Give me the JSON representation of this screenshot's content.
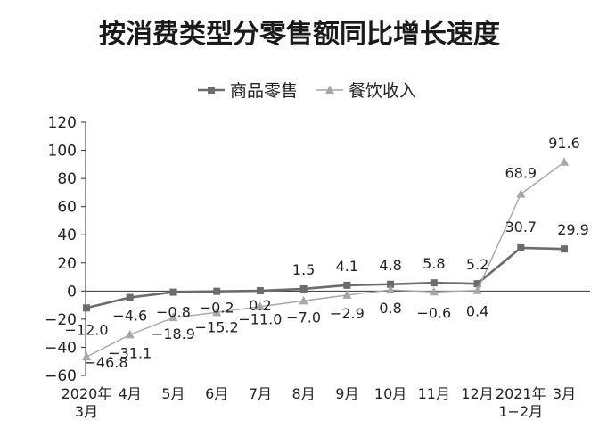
{
  "chart_data": {
    "type": "line",
    "title": "按消费类型分零售额同比增长速度",
    "legend_position": "top-center",
    "grid": false,
    "categories": [
      [
        "2020年",
        "3月"
      ],
      [
        "4月"
      ],
      [
        "5月"
      ],
      [
        "6月"
      ],
      [
        "7月"
      ],
      [
        "8月"
      ],
      [
        "9月"
      ],
      [
        "10月"
      ],
      [
        "11月"
      ],
      [
        "12月"
      ],
      [
        "2021年",
        "1−2月"
      ],
      [
        "3月"
      ]
    ],
    "series": [
      {
        "name": "商品零售",
        "color": "#6b6b6b",
        "marker": "square",
        "values": [
          -12.0,
          -4.6,
          -0.8,
          -0.2,
          0.2,
          1.5,
          4.1,
          4.8,
          5.8,
          5.2,
          30.7,
          29.9
        ],
        "labels": [
          "−12.0",
          "−4.6",
          "−0.8",
          "−0.2",
          "0.2",
          "1.5",
          "4.1",
          "4.8",
          "5.8",
          "5.2",
          "30.7",
          "29.9"
        ]
      },
      {
        "name": "餐饮收入",
        "color": "#a6a6a6",
        "marker": "triangle",
        "values": [
          -46.8,
          -31.1,
          -18.9,
          -15.2,
          -11.0,
          -7.0,
          -2.9,
          0.8,
          -0.6,
          0.4,
          68.9,
          91.6
        ],
        "labels": [
          "−46.8",
          "−31.1",
          "−18.9",
          "−15.2",
          "−11.0",
          "−7.0",
          "−2.9",
          "0.8",
          "−0.6",
          "0.4",
          "68.9",
          "91.6"
        ]
      }
    ],
    "ylim": [
      -60,
      120
    ],
    "yticks": [
      {
        "value": 120,
        "label": "120"
      },
      {
        "value": 100,
        "label": "100"
      },
      {
        "value": 80,
        "label": "80"
      },
      {
        "value": 60,
        "label": "60"
      },
      {
        "value": 40,
        "label": "40"
      },
      {
        "value": 20,
        "label": "20"
      },
      {
        "value": 0,
        "label": "0"
      },
      {
        "value": -20,
        "label": "−20"
      },
      {
        "value": -40,
        "label": "−40"
      },
      {
        "value": -60,
        "label": "−60"
      }
    ]
  }
}
